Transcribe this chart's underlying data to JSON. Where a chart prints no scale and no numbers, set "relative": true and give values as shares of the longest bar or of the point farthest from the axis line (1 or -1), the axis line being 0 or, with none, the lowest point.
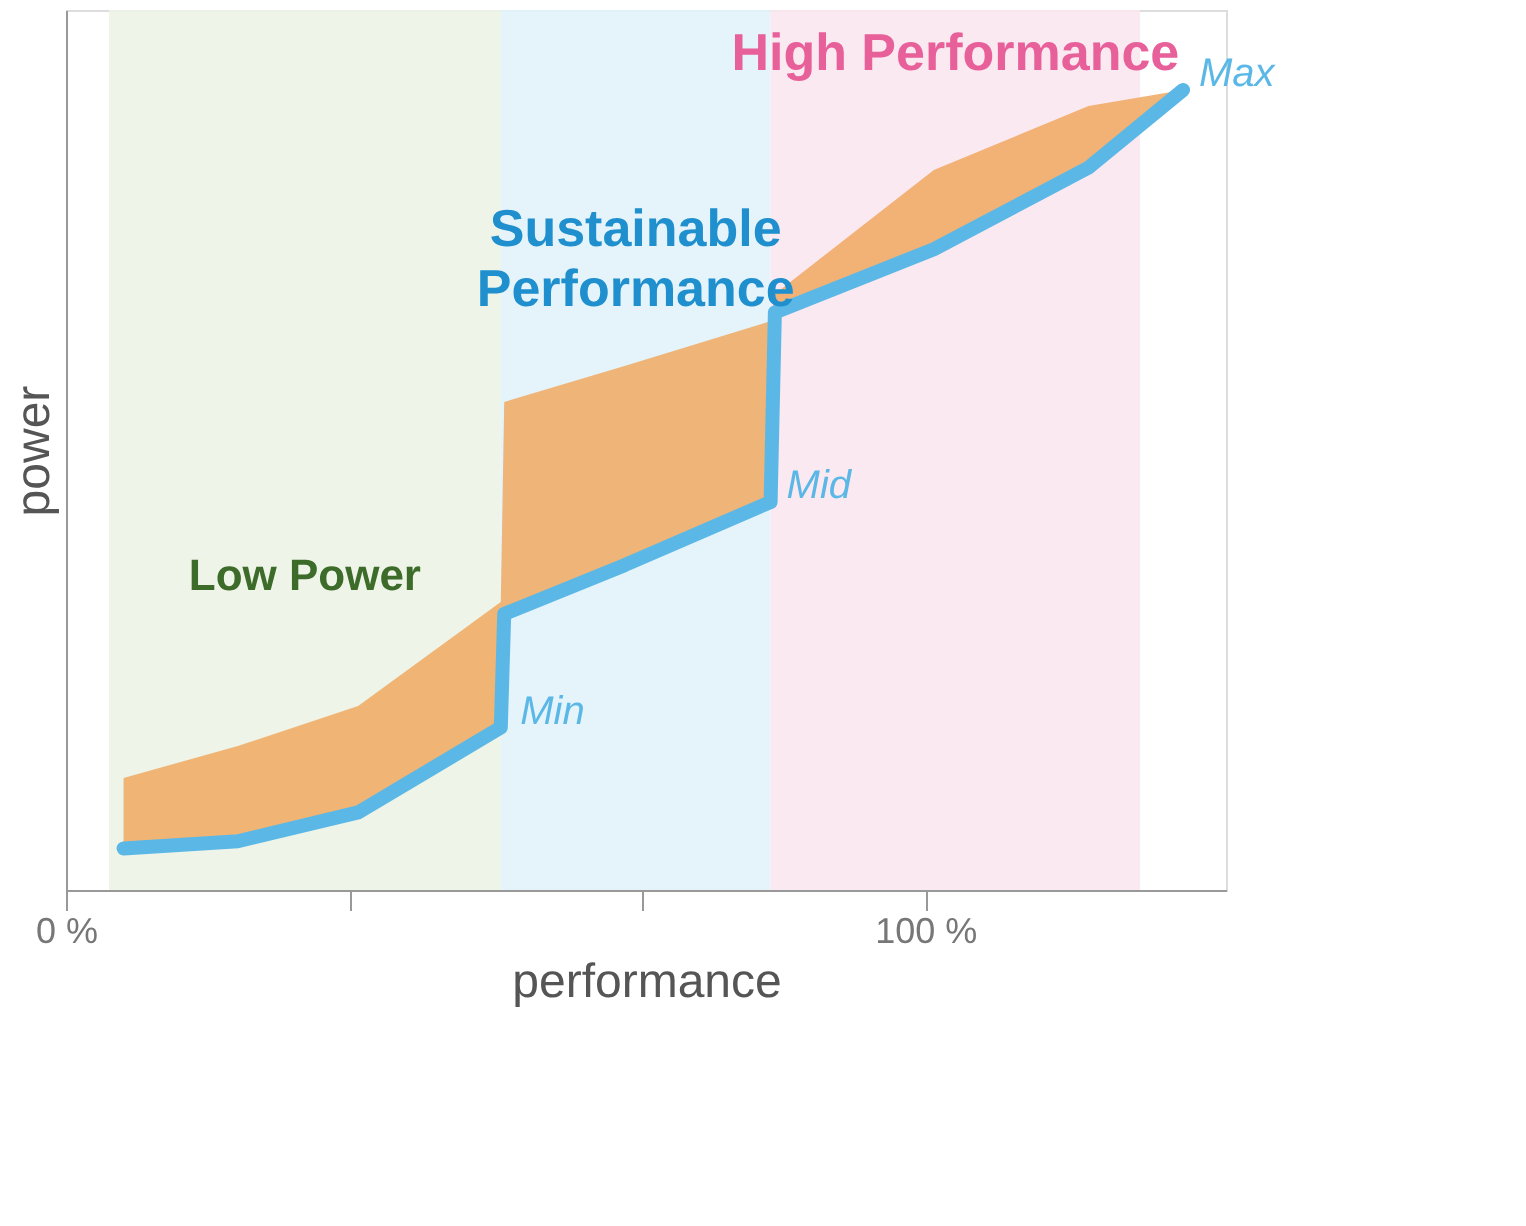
{
  "chart_data": {
    "type": "line",
    "relative": true,
    "xlabel": "performance",
    "ylabel": "power",
    "x": [
      6.7,
      20,
      34,
      50.6,
      51,
      65,
      82,
      82.5,
      101,
      119,
      130
    ],
    "series": [
      {
        "color": "#5bb8e6",
        "values": [
          0.052,
          0.061,
          0.097,
          0.203,
          0.345,
          0.406,
          0.485,
          0.722,
          0.801,
          0.903,
          1.0
        ],
        "lower": [
          0.052,
          0.061,
          0.097,
          0.203,
          0.345,
          0.406,
          0.485,
          0.722,
          0.801,
          0.903,
          1.0
        ],
        "upper": [
          0.14,
          0.18,
          0.23,
          0.36,
          0.61,
          0.655,
          0.711,
          0.745,
          0.9,
          0.98,
          1.0
        ]
      }
    ],
    "xlim": [
      0,
      135
    ],
    "xticks": [
      {
        "value": 0,
        "label": "0 %"
      },
      {
        "value": 33,
        "label": null
      },
      {
        "value": 67,
        "label": null
      },
      {
        "value": 100,
        "label": "100 %"
      }
    ],
    "bands": [
      {
        "axis": "x",
        "from": 5,
        "to": 50.6,
        "label": "Low Power",
        "color": "#ecf3e6"
      },
      {
        "axis": "x",
        "from": 50.6,
        "to": 82,
        "label": "Sustainable Performance",
        "color": "#e2f3fb"
      },
      {
        "axis": "x",
        "from": 82,
        "to": 125,
        "label": "High Performance",
        "color": "#fbe7f0"
      }
    ],
    "annotations": [
      {
        "text": "Min",
        "x": 51,
        "y": 0.203
      },
      {
        "text": "Mid",
        "x": 82,
        "y": 0.485
      },
      {
        "text": "Max",
        "x": 130,
        "y": 1.0
      }
    ],
    "tick_labels": "x"
  }
}
